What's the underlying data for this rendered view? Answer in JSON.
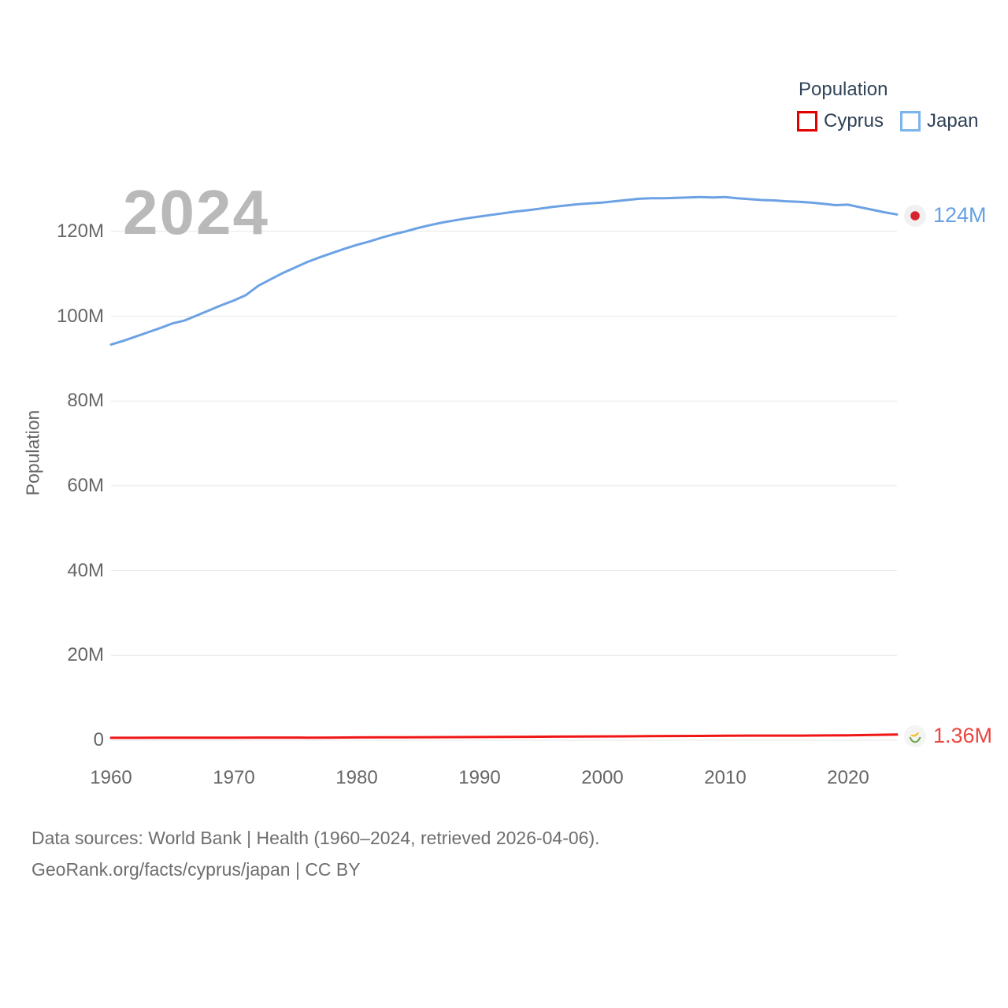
{
  "legend": {
    "title": "Population",
    "items": [
      {
        "label": "Cyprus",
        "color": "#e00000"
      },
      {
        "label": "Japan",
        "color": "#7cb5ec"
      }
    ]
  },
  "watermark": "2024",
  "y_axis_title": "Population",
  "end_labels": {
    "japan": {
      "text": "124M",
      "color": "#66a0e2"
    },
    "cyprus": {
      "text": "1.36M",
      "color": "#e94640"
    }
  },
  "footer": {
    "line1": "Data sources: World Bank | Health (1960–2024, retrieved 2026-04-06).",
    "line2": "GeoRank.org/facts/cyprus/japan | CC BY"
  },
  "chart_data": {
    "type": "line",
    "title": "Population",
    "xlabel": "",
    "ylabel": "Population",
    "unit": "millions of people",
    "grid": true,
    "legend_position": "top-right",
    "xlim": [
      1960,
      2024
    ],
    "ylim": [
      0,
      130
    ],
    "xticks": [
      {
        "value": 1960,
        "label": "1960"
      },
      {
        "value": 1970,
        "label": "1970"
      },
      {
        "value": 1980,
        "label": "1980"
      },
      {
        "value": 1990,
        "label": "1990"
      },
      {
        "value": 2000,
        "label": "2000"
      },
      {
        "value": 2010,
        "label": "2010"
      },
      {
        "value": 2020,
        "label": "2020"
      }
    ],
    "yticks": [
      {
        "value": 0,
        "label": "0"
      },
      {
        "value": 20,
        "label": "20M"
      },
      {
        "value": 40,
        "label": "40M"
      },
      {
        "value": 60,
        "label": "60M"
      },
      {
        "value": 80,
        "label": "80M"
      },
      {
        "value": 100,
        "label": "100M"
      },
      {
        "value": 120,
        "label": "120M"
      }
    ],
    "series": [
      {
        "name": "Japan",
        "key": "japan",
        "color": "#6ca2e4",
        "end_label": "124M",
        "data": [
          [
            1960,
            93.3
          ],
          [
            1961,
            94.2
          ],
          [
            1962,
            95.2
          ],
          [
            1963,
            96.2
          ],
          [
            1964,
            97.2
          ],
          [
            1965,
            98.3
          ],
          [
            1966,
            99.0
          ],
          [
            1967,
            100.2
          ],
          [
            1968,
            101.4
          ],
          [
            1969,
            102.6
          ],
          [
            1970,
            103.7
          ],
          [
            1971,
            105.0
          ],
          [
            1972,
            107.2
          ],
          [
            1973,
            108.7
          ],
          [
            1974,
            110.2
          ],
          [
            1975,
            111.5
          ],
          [
            1976,
            112.8
          ],
          [
            1977,
            113.9
          ],
          [
            1978,
            114.9
          ],
          [
            1979,
            115.9
          ],
          [
            1980,
            116.8
          ],
          [
            1981,
            117.6
          ],
          [
            1982,
            118.5
          ],
          [
            1983,
            119.3
          ],
          [
            1984,
            120.0
          ],
          [
            1985,
            120.8
          ],
          [
            1986,
            121.5
          ],
          [
            1987,
            122.1
          ],
          [
            1988,
            122.6
          ],
          [
            1989,
            123.1
          ],
          [
            1990,
            123.5
          ],
          [
            1991,
            123.9
          ],
          [
            1992,
            124.3
          ],
          [
            1993,
            124.7
          ],
          [
            1994,
            125.0
          ],
          [
            1995,
            125.4
          ],
          [
            1996,
            125.8
          ],
          [
            1997,
            126.1
          ],
          [
            1998,
            126.4
          ],
          [
            1999,
            126.6
          ],
          [
            2000,
            126.8
          ],
          [
            2001,
            127.1
          ],
          [
            2002,
            127.4
          ],
          [
            2003,
            127.7
          ],
          [
            2004,
            127.8
          ],
          [
            2005,
            127.8
          ],
          [
            2006,
            127.9
          ],
          [
            2007,
            128.0
          ],
          [
            2008,
            128.1
          ],
          [
            2009,
            128.0
          ],
          [
            2010,
            128.1
          ],
          [
            2011,
            127.8
          ],
          [
            2012,
            127.6
          ],
          [
            2013,
            127.4
          ],
          [
            2014,
            127.3
          ],
          [
            2015,
            127.1
          ],
          [
            2016,
            127.0
          ],
          [
            2017,
            126.8
          ],
          [
            2018,
            126.5
          ],
          [
            2019,
            126.2
          ],
          [
            2020,
            126.3
          ],
          [
            2021,
            125.7
          ],
          [
            2022,
            125.1
          ],
          [
            2023,
            124.5
          ],
          [
            2024,
            124.0
          ]
        ]
      },
      {
        "name": "Cyprus",
        "key": "cyprus",
        "color": "#f11616",
        "end_label": "1.36M",
        "data": [
          [
            1960,
            0.573
          ],
          [
            1962,
            0.581
          ],
          [
            1964,
            0.589
          ],
          [
            1966,
            0.597
          ],
          [
            1968,
            0.605
          ],
          [
            1970,
            0.614
          ],
          [
            1972,
            0.626
          ],
          [
            1974,
            0.63
          ],
          [
            1976,
            0.622
          ],
          [
            1978,
            0.64
          ],
          [
            1980,
            0.66
          ],
          [
            1982,
            0.68
          ],
          [
            1984,
            0.7
          ],
          [
            1986,
            0.72
          ],
          [
            1988,
            0.743
          ],
          [
            1990,
            0.767
          ],
          [
            1992,
            0.794
          ],
          [
            1994,
            0.822
          ],
          [
            1996,
            0.85
          ],
          [
            1998,
            0.878
          ],
          [
            2000,
            0.906
          ],
          [
            2002,
            0.934
          ],
          [
            2004,
            0.965
          ],
          [
            2006,
            0.997
          ],
          [
            2008,
            1.029
          ],
          [
            2010,
            1.061
          ],
          [
            2012,
            1.089
          ],
          [
            2014,
            1.088
          ],
          [
            2016,
            1.1
          ],
          [
            2018,
            1.13
          ],
          [
            2020,
            1.162
          ],
          [
            2022,
            1.25
          ],
          [
            2024,
            1.36
          ]
        ]
      }
    ]
  }
}
